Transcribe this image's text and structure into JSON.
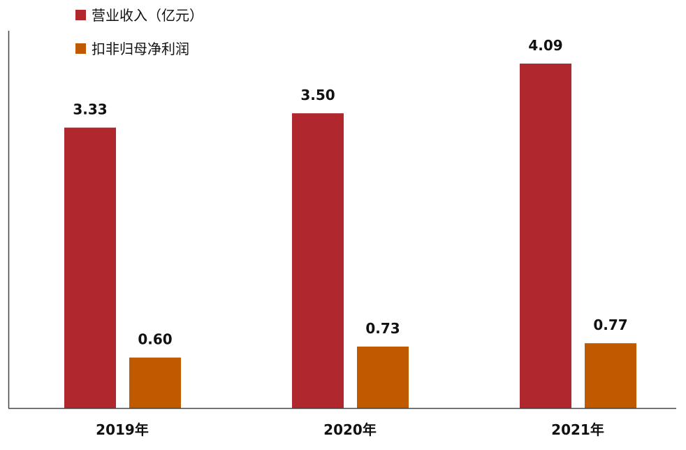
{
  "chart_data": {
    "type": "bar",
    "categories": [
      "2019年",
      "2020年",
      "2021年"
    ],
    "series": [
      {
        "name": "营业收入（亿元）",
        "values": [
          3.33,
          3.5,
          4.09
        ],
        "color": "#B0272D"
      },
      {
        "name": "扣非归母净利润",
        "values": [
          0.6,
          0.73,
          0.77
        ],
        "color": "#C05A00"
      }
    ],
    "value_labels": [
      [
        "3.33",
        "3.50",
        "4.09"
      ],
      [
        "0.60",
        "0.73",
        "0.77"
      ]
    ],
    "ylim": [
      0,
      4.09
    ],
    "grid": false,
    "legend_position": "top-left"
  }
}
